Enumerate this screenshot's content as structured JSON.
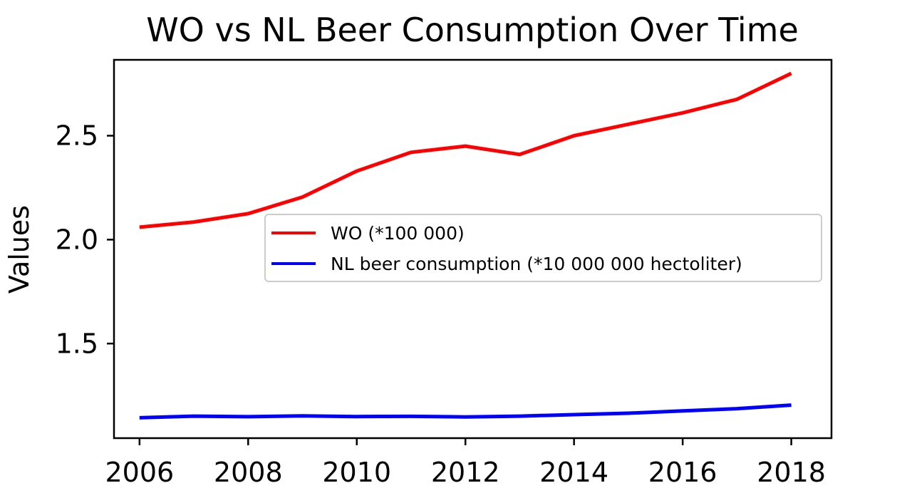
{
  "chart_data": {
    "type": "line",
    "title": "WO vs NL Beer Consumption Over Time",
    "xlabel": "",
    "ylabel": "Values",
    "x": [
      2006,
      2007,
      2008,
      2009,
      2010,
      2011,
      2012,
      2013,
      2014,
      2015,
      2016,
      2017,
      2018
    ],
    "xticks": [
      "2006",
      "2008",
      "2010",
      "2012",
      "2014",
      "2016",
      "2018"
    ],
    "yticks": [
      "1.5",
      "2.0",
      "2.5"
    ],
    "xlim": [
      2005.53,
      2018.74
    ],
    "ylim": [
      1.045,
      2.865
    ],
    "grid": false,
    "legend_position": "center-right",
    "series": [
      {
        "name": "WO (*100 000)",
        "color": "#ff0000",
        "values": [
          2.06,
          2.085,
          2.125,
          2.205,
          2.33,
          2.42,
          2.45,
          2.41,
          2.5,
          2.555,
          2.61,
          2.675,
          2.8
        ]
      },
      {
        "name": "NL beer consumption (*10 000 000  hectoliter)",
        "color": "#0000ff",
        "values": [
          1.143,
          1.151,
          1.148,
          1.152,
          1.149,
          1.15,
          1.147,
          1.151,
          1.158,
          1.165,
          1.176,
          1.187,
          1.204
        ]
      }
    ]
  }
}
